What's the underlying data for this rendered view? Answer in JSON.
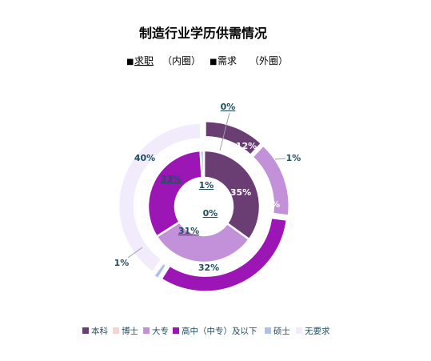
{
  "chart_data": {
    "type": "donut",
    "title": "制造行业学历供需情况",
    "subtitle": {
      "items": [
        {
          "marker": "■",
          "label": "求职",
          "note": "（内圈）"
        },
        {
          "marker": "■",
          "label": "需求",
          "note": "（外圈）"
        }
      ]
    },
    "categories": [
      "本科",
      "博士",
      "大专",
      "高中（中专）及以下",
      "硕士",
      "无要求"
    ],
    "colors": {
      "本科": "#6a3d73",
      "博士": "#f4d5d0",
      "大专": "#c391d9",
      "高中（中专）及以下": "#9c16b6",
      "硕士": "#aebfe9",
      "无要求": "#f1ebfb"
    },
    "series": [
      {
        "name": "求职",
        "ring": "inner",
        "values": [
          35,
          0,
          31,
          33,
          1,
          0
        ],
        "labels": [
          "35%",
          "0%",
          "31%",
          "33%",
          "1%",
          "0%"
        ]
      },
      {
        "name": "需求",
        "ring": "outer",
        "values": [
          12,
          0,
          15,
          32,
          1,
          40
        ],
        "labels": [
          "12%",
          "0%",
          "15%",
          "32%",
          "1%",
          "40%"
        ]
      }
    ],
    "extra_labels": [
      "0%",
      "1%"
    ],
    "legend": {
      "position": "bottom",
      "items": [
        "本科",
        "博士",
        "大专",
        "高中（中专）及以下",
        "硕士",
        "无要求"
      ]
    },
    "label_color": "#1f4e5f",
    "title_color": "#000000"
  }
}
